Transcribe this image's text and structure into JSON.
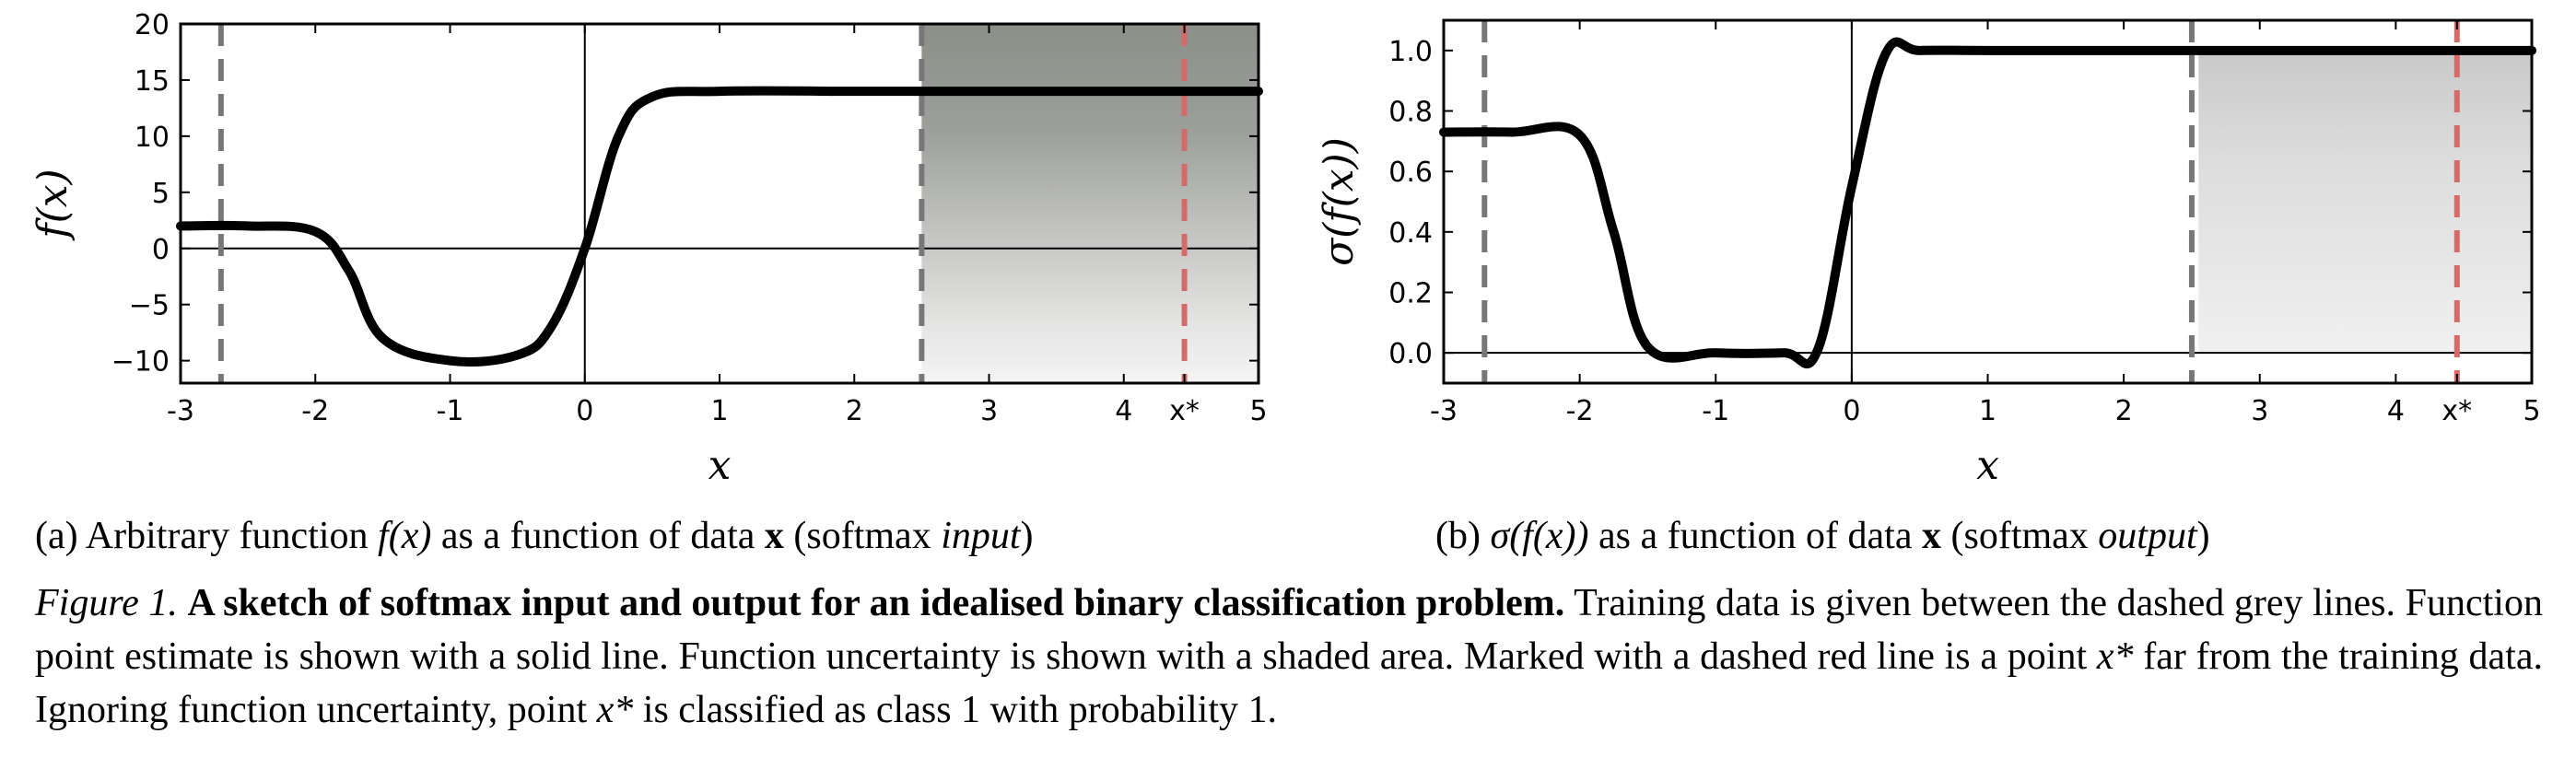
{
  "panels": [
    {
      "id": "a",
      "ylabel": "f(x)",
      "xlabel": "x",
      "xticks": [
        "-3",
        "-2",
        "-1",
        "0",
        "1",
        "2",
        "3",
        "4",
        "x*",
        "5"
      ],
      "yticks": [
        "20",
        "15",
        "10",
        "5",
        "0",
        "−10"
      ],
      "caption": {
        "prefix": "(a) Arbitrary function ",
        "func": "f(x)",
        "middle": " as a function of data ",
        "x": "x",
        "suffix_open": " (softmax ",
        "em": "input",
        "suffix_close": ")"
      }
    },
    {
      "id": "b",
      "ylabel": "σ(f(x))",
      "xlabel": "x",
      "xticks": [
        "-3",
        "-2",
        "-1",
        "0",
        "1",
        "2",
        "3",
        "4",
        "x*",
        "5"
      ],
      "yticks": [
        "1.0",
        "0.8",
        "0.6",
        "0.4",
        "0.2",
        "0.0"
      ],
      "caption": {
        "prefix": "(b) ",
        "func": "σ(f(x))",
        "middle": " as a function of data ",
        "x": "x",
        "suffix_open": " (softmax ",
        "em": "output",
        "suffix_close": ")"
      }
    }
  ],
  "yminus5": "−5",
  "figure_caption": {
    "label": "Figure 1.",
    "title": "A sketch of softmax input and output for an idealised binary classification problem.",
    "part1": " Training data is given between the dashed grey lines. Function point estimate is shown with a solid line. Function uncertainty is shown with a shaded area. Marked with a dashed red line is a point ",
    "xstar1": "x*",
    "part2": " far from the training data. Ignoring function uncertainty, point ",
    "xstar2": "x*",
    "part3": " is classified as class 1 with probability 1."
  },
  "chart_data": [
    {
      "type": "line",
      "title": "",
      "xlabel": "x",
      "ylabel": "f(x)",
      "xlim": [
        -3,
        5
      ],
      "ylim": [
        -12,
        20
      ],
      "x": [
        -3,
        -2.5,
        -2,
        -1.75,
        -1.5,
        -1,
        -0.5,
        -0.25,
        0,
        0.25,
        0.5,
        1,
        2,
        2.5,
        3,
        4,
        5
      ],
      "series": [
        {
          "values": [
            2,
            2,
            1.5,
            -2,
            -8,
            -10,
            -9.5,
            -7,
            0,
            10,
            13.5,
            14,
            14,
            14,
            14,
            14,
            14
          ]
        }
      ],
      "uncertainty_band": {
        "x_start": 2.5,
        "x_end": 5,
        "lower": -12,
        "upper": 20
      },
      "vlines": [
        {
          "x": -2.7,
          "color": "#777777",
          "style": "dashed",
          "meaning": "training data boundary"
        },
        {
          "x": 2.5,
          "color": "#777777",
          "style": "dashed",
          "meaning": "training data boundary"
        },
        {
          "x": 4.45,
          "color": "#d46a6a",
          "style": "dashed",
          "meaning": "x*"
        }
      ],
      "grid": false
    },
    {
      "type": "line",
      "title": "",
      "xlabel": "x",
      "ylabel": "σ(f(x))",
      "xlim": [
        -3,
        5
      ],
      "ylim": [
        -0.1,
        1.1
      ],
      "x": [
        -3,
        -2.5,
        -2,
        -1.75,
        -1.5,
        -1,
        -0.5,
        -0.25,
        0,
        0.25,
        0.5,
        1,
        2,
        2.5,
        3,
        4,
        5
      ],
      "series": [
        {
          "values": [
            0.73,
            0.73,
            0.72,
            0.4,
            0.02,
            0.0,
            0.0,
            0.01,
            0.55,
            0.99,
            1.0,
            1.0,
            1.0,
            1.0,
            1.0,
            1.0,
            1.0
          ]
        }
      ],
      "uncertainty_band": {
        "x_start": 2.55,
        "x_end": 5,
        "lower": 0.0,
        "upper": 1.0
      },
      "vlines": [
        {
          "x": -2.7,
          "color": "#777777",
          "style": "dashed",
          "meaning": "training data boundary"
        },
        {
          "x": 2.5,
          "color": "#777777",
          "style": "dashed",
          "meaning": "training data boundary"
        },
        {
          "x": 4.45,
          "color": "#d46a6a",
          "style": "dashed",
          "meaning": "x*"
        }
      ],
      "grid": false
    }
  ]
}
